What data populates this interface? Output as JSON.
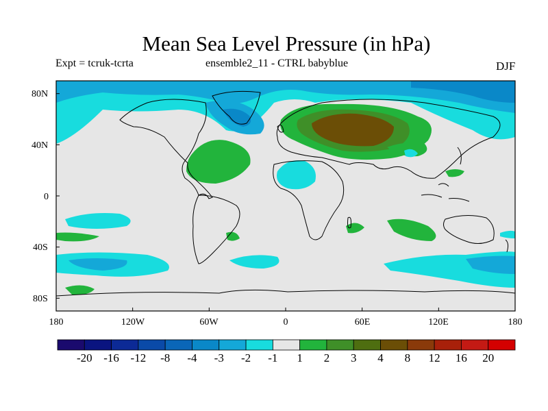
{
  "title": "Mean Sea Level Pressure (in hPa)",
  "subtitle_left": "Expt = tcruk-tcrta",
  "subtitle_center": "ensemble2_11 - CTRL babyblue",
  "season": "DJF",
  "chart_data": {
    "type": "heatmap",
    "variable": "Mean Sea Level Pressure difference",
    "units": "hPa",
    "projection": "cylindrical equidistant",
    "lon_range": [
      -180,
      180
    ],
    "lat_range": [
      -90,
      90
    ],
    "x_ticks": [
      "180",
      "120W",
      "60W",
      "0",
      "60E",
      "120E",
      "180"
    ],
    "y_ticks": [
      "80N",
      "40N",
      "0",
      "40S",
      "80S"
    ],
    "colorbar": {
      "boundaries": [
        "-20",
        "-16",
        "-12",
        "-8",
        "-4",
        "-3",
        "-2",
        "-1",
        "1",
        "2",
        "3",
        "4",
        "8",
        "12",
        "16",
        "20"
      ],
      "colors": [
        "#1a0a6e",
        "#0a1480",
        "#0c2a96",
        "#0a4aa8",
        "#0a66b8",
        "#0a88c8",
        "#14a8d8",
        "#18dcde",
        "#e6e6e6",
        "#22b43c",
        "#3f8f28",
        "#4e6e10",
        "#6b4e06",
        "#8a3a0a",
        "#a8200a",
        "#c41a14",
        "#d40000"
      ]
    },
    "features": [
      {
        "region": "Siberia / Eurasia",
        "lon": 60,
        "lat": 55,
        "level": "4 to 8 hPa"
      },
      {
        "region": "Eurasia broad",
        "lon": 50,
        "lat": 55,
        "level": "1 to 3 hPa"
      },
      {
        "region": "Western North Atlantic",
        "lon": -70,
        "lat": 30,
        "level": "1 to 2 hPa"
      },
      {
        "region": "Greenland / Iceland",
        "lon": -35,
        "lat": 65,
        "level": "-1 to -3 hPa"
      },
      {
        "region": "Arctic",
        "lon": 0,
        "lat": 85,
        "level": "-1 to -3 hPa"
      },
      {
        "region": "North Africa",
        "lon": 10,
        "lat": 20,
        "level": "-1 to -2 hPa"
      },
      {
        "region": "Southern Ocean",
        "lon": 150,
        "lat": -50,
        "level": "-1 to -3 hPa"
      },
      {
        "region": "South Pacific",
        "lon": -140,
        "lat": -50,
        "level": "-1 to -3 hPa"
      }
    ]
  }
}
